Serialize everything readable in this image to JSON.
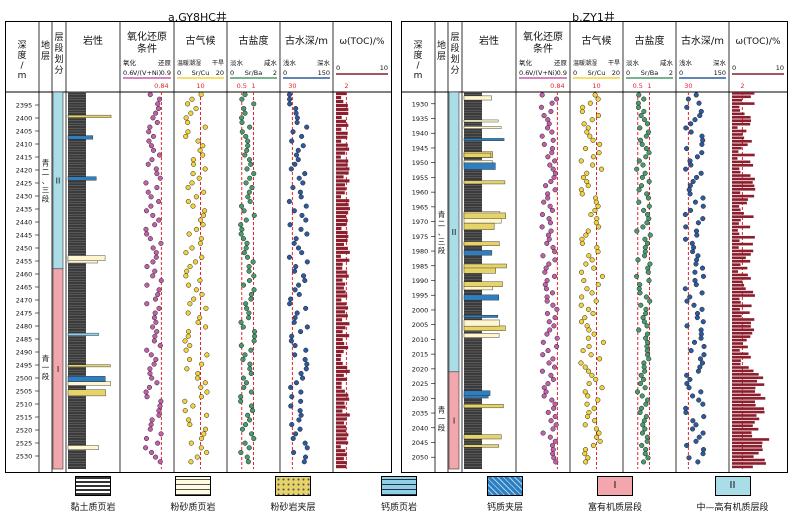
{
  "panels": [
    {
      "id": "a",
      "title": "a.GY8HC井",
      "headers": {
        "depth": "深度/m",
        "formation": "地层",
        "segment": "层段划分",
        "lithology": "岩性",
        "redox": "氧化还原条件",
        "paleoclimate": "古气候",
        "salinity": "古盐度",
        "water_depth": "古水深/m",
        "toc": "ω(TOC)/%"
      },
      "subheaders": {
        "redox": {
          "left": "氧化",
          "right": "还原",
          "param": "V/(V+Ni)",
          "min": "0.6",
          "max": "0.9",
          "ref": "0.84"
        },
        "paleoclimate": {
          "left": "温暖潮湿",
          "right": "干旱",
          "param": "Sr/Cu",
          "min": "0",
          "max": "20",
          "ref": "10"
        },
        "salinity": {
          "left": "淡水",
          "right": "咸水",
          "param": "Sr/Ba",
          "min": "0",
          "max": "2",
          "ref1": "0.5",
          "ref2": "1"
        },
        "water_depth": {
          "left": "浅水",
          "right": "深水",
          "min": "0",
          "max": "150",
          "ref": "30"
        },
        "toc": {
          "min": "0",
          "max": "10",
          "ref": "2"
        }
      },
      "formation_label": "青一段",
      "formation_label_upper": "青二、三段",
      "segments": [
        {
          "code": "II",
          "from": 2390,
          "to": 2458
        },
        {
          "code": "I",
          "from": 2458,
          "to": 2535
        }
      ],
      "depth_range": [
        2390,
        2535
      ],
      "depth_ticks": [
        2395,
        2400,
        2405,
        2410,
        2415,
        2420,
        2425,
        2430,
        2435,
        2440,
        2445,
        2450,
        2455,
        2460,
        2465,
        2470,
        2475,
        2480,
        2485,
        2490,
        2495,
        2500,
        2505,
        2510,
        2515,
        2520,
        2525,
        2530
      ]
    },
    {
      "id": "b",
      "title": "b.ZY1井",
      "headers": {
        "depth": "深度/m",
        "formation": "地层",
        "segment": "层段划分",
        "lithology": "岩性",
        "redox": "氧化还原条件",
        "paleoclimate": "古气候",
        "salinity": "古盐度",
        "water_depth": "古水深/m",
        "toc": "ω(TOC)/%"
      },
      "subheaders": {
        "redox": {
          "left": "氧化",
          "right": "还原",
          "param": "V/(V+Ni)",
          "min": "0.6",
          "max": "0.9",
          "ref": "0.84"
        },
        "paleoclimate": {
          "left": "温暖潮湿",
          "right": "干旱",
          "param": "Sr/Cu",
          "min": "0",
          "max": "20",
          "ref": "10"
        },
        "salinity": {
          "left": "淡水",
          "right": "咸水",
          "param": "Sr/Ba",
          "min": "0",
          "max": "2",
          "ref1": "0.5",
          "ref2": "1"
        },
        "water_depth": {
          "left": "浅水",
          "right": "深水",
          "min": "0",
          "max": "150",
          "ref": "30"
        },
        "toc": {
          "min": "0",
          "max": "10",
          "ref": "2"
        }
      },
      "formation_label": "青一段",
      "formation_label_upper": "青二、三段",
      "segments": [
        {
          "code": "II",
          "from": 1926,
          "to": 2021
        },
        {
          "code": "I",
          "from": 2021,
          "to": 2054
        }
      ],
      "depth_range": [
        1926,
        2054
      ],
      "depth_ticks": [
        1930,
        1935,
        1940,
        1945,
        1950,
        1955,
        1960,
        1965,
        1970,
        1975,
        1980,
        1985,
        1990,
        1995,
        2000,
        2005,
        2010,
        2015,
        2020,
        2025,
        2030,
        2035,
        2040,
        2045,
        2050
      ]
    }
  ],
  "legend": [
    {
      "key": "clay",
      "label": "黏土质页岩"
    },
    {
      "key": "siltshale",
      "label": "粉砂质页岩"
    },
    {
      "key": "siltinter",
      "label": "粉砂岩夹层"
    },
    {
      "key": "calcshale",
      "label": "钙质页岩"
    },
    {
      "key": "calcinter",
      "label": "钙质夹层"
    },
    {
      "key": "seg1",
      "label": "富有机质层段",
      "code": "I"
    },
    {
      "key": "seg2",
      "label": "中—高有机质层段",
      "code": "II"
    }
  ],
  "colors": {
    "segment_I": "#f3a7ad",
    "segment_II": "#a9dde8",
    "redox_dot": "#c25fa8",
    "climate_dot": "#f4d23c",
    "salinity_dot": "#4a9a6c",
    "water_dot": "#2d5a9e",
    "toc_bar": "#8b1f2e",
    "ref_line": "#e8232a",
    "shale": "#3a3a3a",
    "silt_yellow": "#e6d36a",
    "calc_blue": "#2f7fc0"
  }
}
